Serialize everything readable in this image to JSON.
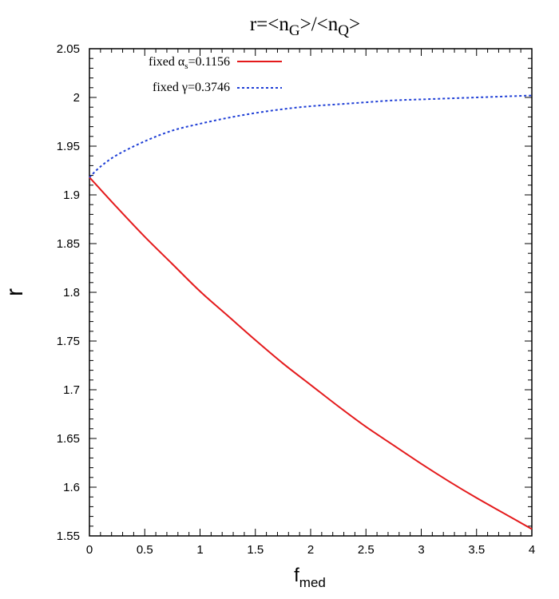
{
  "chart_data": {
    "type": "line",
    "title": {
      "prefix": "r=<n",
      "sub1": "G",
      "mid": ">/<n",
      "sub2": "Q",
      "suffix": ">"
    },
    "xlabel": {
      "main": "f",
      "sub": "med"
    },
    "ylabel": "r",
    "xlim": [
      0,
      4
    ],
    "ylim": [
      1.55,
      2.05
    ],
    "xticks": [
      "0",
      "0.5",
      "1",
      "1.5",
      "2",
      "2.5",
      "3",
      "3.5",
      "4"
    ],
    "yticks": [
      "1.55",
      "1.6",
      "1.65",
      "1.7",
      "1.75",
      "1.8",
      "1.85",
      "1.9",
      "1.95",
      "2",
      "2.05"
    ],
    "grid": false,
    "legend_position": "top-left",
    "series": [
      {
        "legend": {
          "prefix": "fixed ",
          "symbol": "α",
          "sub": "s",
          "suffix": "=0.1156"
        },
        "color": "#e41a1c",
        "style": "solid",
        "x": [
          0,
          0.25,
          0.5,
          0.75,
          1,
          1.25,
          1.5,
          1.75,
          2,
          2.25,
          2.5,
          2.75,
          3,
          3.25,
          3.5,
          3.75,
          4
        ],
        "y": [
          1.918,
          1.887,
          1.857,
          1.829,
          1.801,
          1.776,
          1.751,
          1.727,
          1.705,
          1.683,
          1.662,
          1.643,
          1.624,
          1.606,
          1.589,
          1.573,
          1.557
        ]
      },
      {
        "legend": {
          "prefix": "fixed ",
          "symbol": "γ",
          "sub": "",
          "suffix": "=0.3746"
        },
        "color": "#1f3fd6",
        "style": "dotted",
        "x": [
          0,
          0.1,
          0.25,
          0.5,
          0.75,
          1,
          1.25,
          1.5,
          1.75,
          2,
          2.25,
          2.5,
          2.75,
          3,
          3.25,
          3.5,
          3.75,
          4
        ],
        "y": [
          1.918,
          1.929,
          1.941,
          1.955,
          1.966,
          1.973,
          1.979,
          1.984,
          1.988,
          1.991,
          1.993,
          1.995,
          1.997,
          1.998,
          1.999,
          2.0,
          2.001,
          2.002
        ]
      }
    ]
  }
}
